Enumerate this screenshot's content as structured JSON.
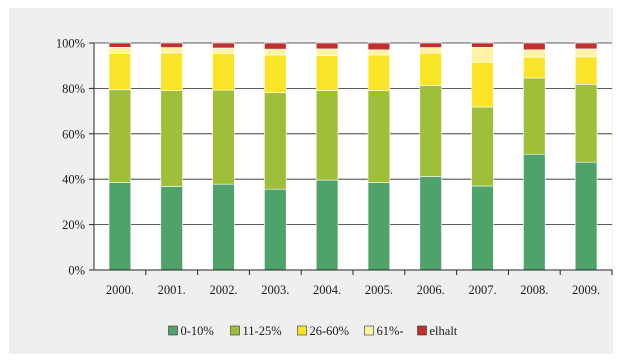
{
  "chart_data": {
    "type": "bar",
    "stacked": true,
    "categories": [
      "2000.",
      "2001.",
      "2002.",
      "2003.",
      "2004.",
      "2005.",
      "2006.",
      "2007.",
      "2008.",
      "2009."
    ],
    "series": [
      {
        "name": "0-10%",
        "color": "#4fa36a",
        "values": [
          38.5,
          36.8,
          37.8,
          35.6,
          39.6,
          38.5,
          41.2,
          37.0,
          51.0,
          47.5
        ]
      },
      {
        "name": "11-25%",
        "color": "#9fbf3b",
        "values": [
          40.9,
          42.2,
          41.4,
          42.5,
          39.4,
          40.5,
          40.1,
          34.8,
          33.6,
          34.3
        ]
      },
      {
        "name": "26-60%",
        "color": "#f9e428",
        "values": [
          15.9,
          16.6,
          16.1,
          16.6,
          15.4,
          15.7,
          14.2,
          19.7,
          9.2,
          12.1
        ]
      },
      {
        "name": "61%-",
        "color": "#fdf3a4",
        "values": [
          2.8,
          2.4,
          2.5,
          2.6,
          3.0,
          2.3,
          2.5,
          6.6,
          3.2,
          3.5
        ]
      },
      {
        "name": "elhalt",
        "color": "#c0302e",
        "values": [
          1.9,
          2.0,
          2.2,
          2.7,
          2.6,
          3.0,
          2.0,
          1.9,
          3.0,
          2.6
        ]
      }
    ],
    "y_ticks": [
      "0%",
      "20%",
      "40%",
      "60%",
      "80%",
      "100%"
    ],
    "ylim": [
      0,
      100
    ],
    "grid": true,
    "legend_position": "bottom"
  }
}
